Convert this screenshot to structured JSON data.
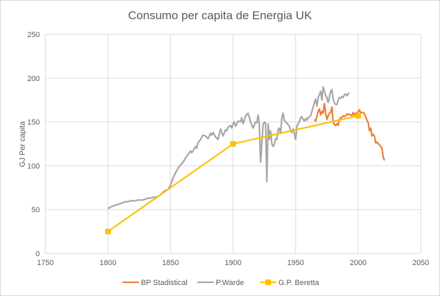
{
  "chart_data": {
    "type": "line",
    "title": "Consumo per capita de Energia UK",
    "xlabel": "",
    "ylabel": "GJ Per capita",
    "xlim": [
      1750,
      2050
    ],
    "ylim": [
      0,
      250
    ],
    "xticks": [
      1750,
      1800,
      1850,
      1900,
      1950,
      2000,
      2050
    ],
    "yticks": [
      0,
      50,
      100,
      150,
      200,
      250
    ],
    "grid": true,
    "legend_position": "bottom",
    "series": [
      {
        "name": "BP Stadistical",
        "color": "#ed7d31",
        "marker": "none",
        "x": [
          1965,
          1966,
          1967,
          1968,
          1969,
          1970,
          1971,
          1972,
          1973,
          1974,
          1975,
          1976,
          1977,
          1978,
          1979,
          1980,
          1981,
          1982,
          1983,
          1984,
          1985,
          1986,
          1987,
          1988,
          1989,
          1990,
          1991,
          1992,
          1993,
          1994,
          1995,
          1996,
          1997,
          1998,
          1999,
          2000,
          2001,
          2002,
          2003,
          2004,
          2005,
          2006,
          2007,
          2008,
          2009,
          2010,
          2011,
          2012,
          2013,
          2014,
          2015,
          2016,
          2017,
          2018,
          2019,
          2020,
          2021
        ],
        "y": [
          153,
          151,
          156,
          162,
          165,
          158,
          162,
          160,
          171,
          160,
          153,
          157,
          160,
          161,
          167,
          150,
          147,
          146,
          148,
          146,
          153,
          155,
          155,
          157,
          156,
          157,
          159,
          158,
          159,
          158,
          157,
          161,
          158,
          160,
          160,
          162,
          164,
          160,
          161,
          161,
          159,
          156,
          152,
          149,
          140,
          143,
          134,
          136,
          134,
          126,
          127,
          125,
          124,
          122,
          120,
          110,
          106
        ]
      },
      {
        "name": "P.Warde",
        "color": "#a5a5a5",
        "marker": "none",
        "x": [
          1800,
          1802,
          1804,
          1806,
          1808,
          1810,
          1812,
          1814,
          1816,
          1818,
          1820,
          1822,
          1824,
          1826,
          1828,
          1830,
          1832,
          1834,
          1836,
          1838,
          1840,
          1842,
          1844,
          1846,
          1848,
          1850,
          1852,
          1854,
          1856,
          1858,
          1860,
          1862,
          1863,
          1864,
          1866,
          1867,
          1868,
          1870,
          1871,
          1872,
          1874,
          1876,
          1878,
          1880,
          1882,
          1883,
          1884,
          1886,
          1888,
          1890,
          1892,
          1894,
          1895,
          1896,
          1898,
          1899,
          1900,
          1901,
          1902,
          1903,
          1904,
          1906,
          1907,
          1908,
          1909,
          1910,
          1912,
          1913,
          1914,
          1916,
          1918,
          1919,
          1920,
          1921,
          1922,
          1924,
          1925,
          1926,
          1927,
          1928,
          1929,
          1930,
          1931,
          1932,
          1933,
          1934,
          1935,
          1936,
          1937,
          1938,
          1939,
          1940,
          1941,
          1942,
          1944,
          1945,
          1946,
          1947,
          1948,
          1950,
          1951,
          1952,
          1953,
          1954,
          1955,
          1956,
          1957,
          1958,
          1959,
          1960,
          1962,
          1963,
          1964,
          1965,
          1966,
          1967,
          1968,
          1970,
          1971,
          1972,
          1973,
          1974,
          1975,
          1976,
          1977,
          1978,
          1979,
          1980,
          1981,
          1982,
          1983,
          1984,
          1985,
          1986,
          1987,
          1988,
          1989,
          1990,
          1991,
          1992,
          1993
        ],
        "y": [
          51,
          53,
          54,
          55,
          56,
          57,
          58,
          59,
          59,
          60,
          60,
          60,
          61,
          61,
          61,
          62,
          63,
          63,
          64,
          64,
          65,
          67,
          70,
          72,
          73,
          78,
          86,
          92,
          97,
          101,
          104,
          109,
          111,
          113,
          117,
          115,
          117,
          122,
          120,
          126,
          130,
          135,
          134,
          131,
          137,
          135,
          138,
          133,
          130,
          142,
          134,
          141,
          140,
          144,
          146,
          143,
          148,
          150,
          145,
          148,
          151,
          150,
          155,
          148,
          152,
          157,
          160,
          155,
          150,
          143,
          150,
          149,
          158,
          148,
          104,
          147,
          150,
          148,
          82,
          148,
          130,
          140,
          125,
          122,
          125,
          131,
          130,
          141,
          143,
          137,
          155,
          160,
          152,
          150,
          147,
          145,
          140,
          138,
          142,
          130,
          145,
          148,
          150,
          155,
          156,
          153,
          151,
          154,
          152,
          155,
          157,
          162,
          167,
          172,
          176,
          168,
          178,
          185,
          175,
          190,
          185,
          180,
          178,
          172,
          178,
          185,
          187,
          176,
          172,
          170,
          170,
          175,
          178,
          177,
          179,
          178,
          181,
          182,
          180,
          182,
          183
        ]
      },
      {
        "name": "G.P. Beretta",
        "color": "#ffc000",
        "marker": "square",
        "x": [
          1800,
          1900,
          2000
        ],
        "y": [
          25,
          125,
          157
        ]
      }
    ]
  }
}
